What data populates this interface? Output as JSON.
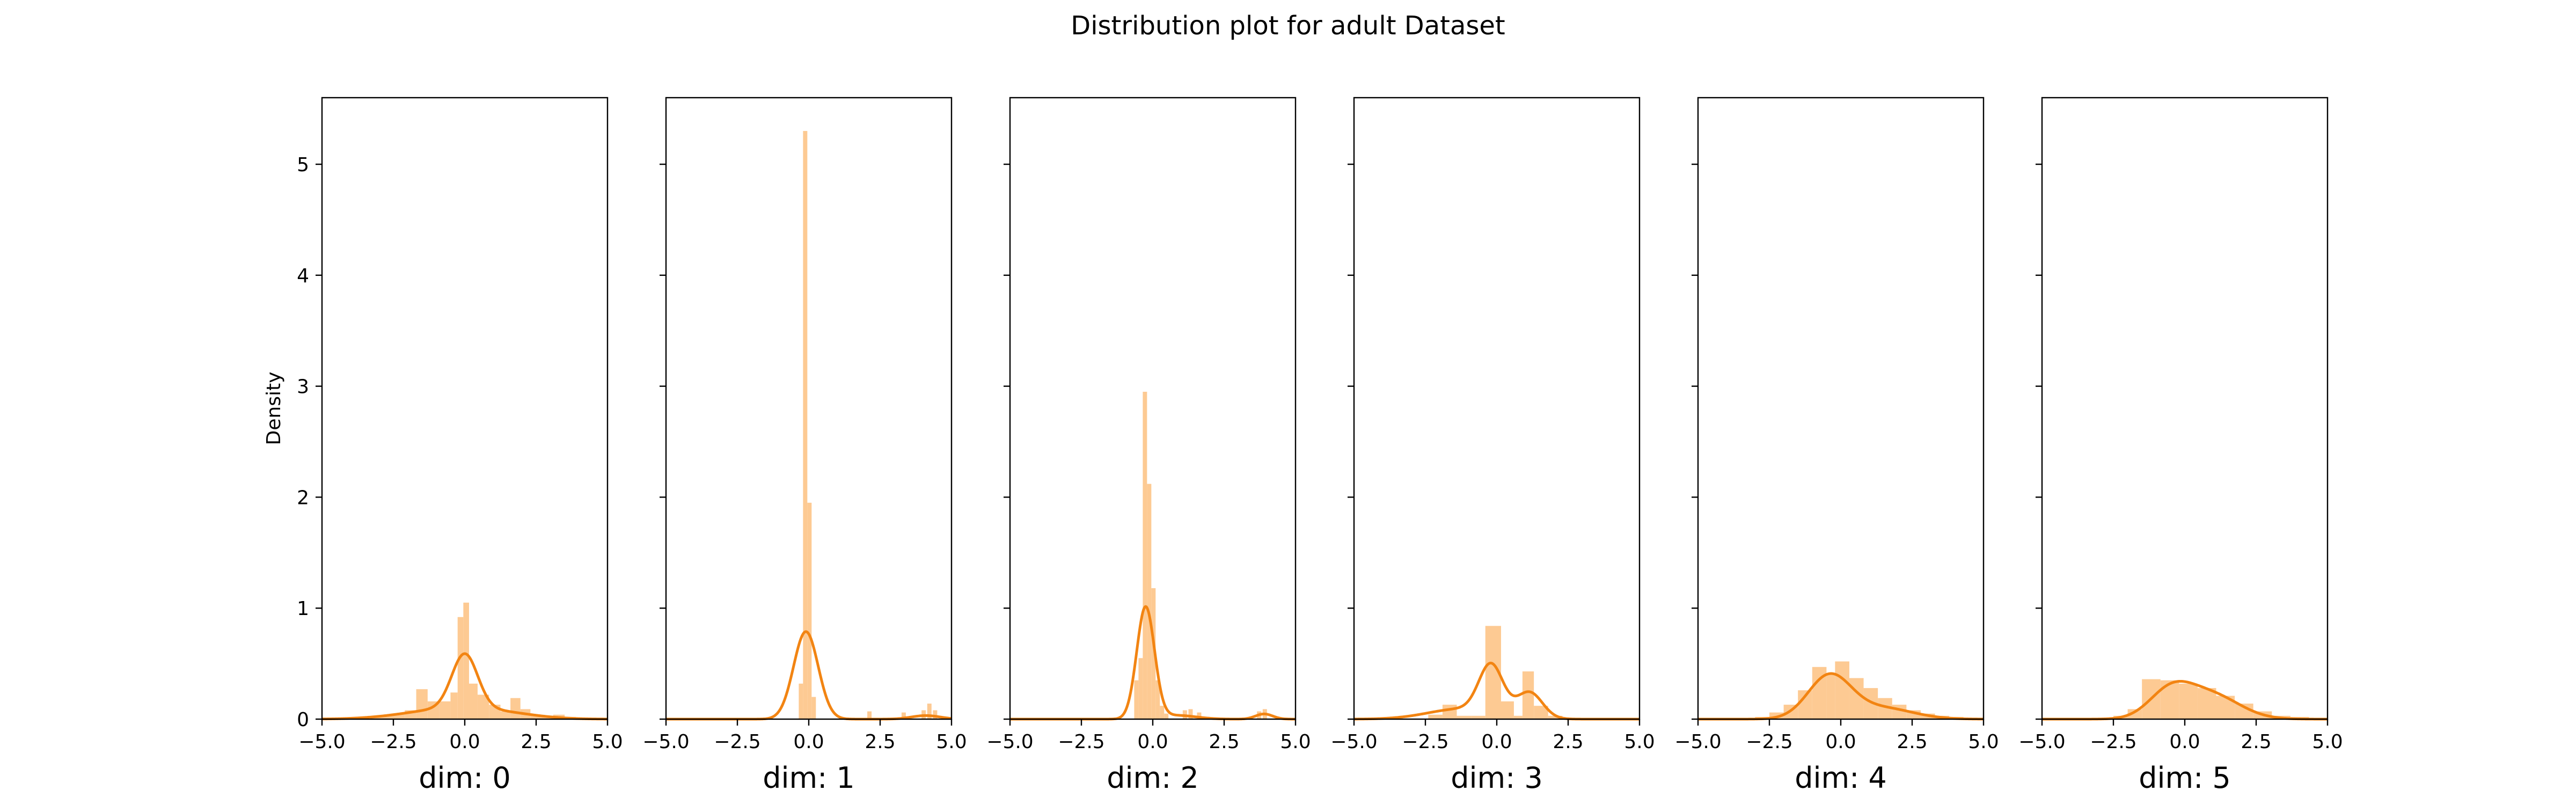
{
  "figure": {
    "title": "Distribution plot for adult Dataset"
  },
  "colors": {
    "bar": "#fdca93",
    "kde": "#f28412",
    "axis": "#000000"
  },
  "chart_data": {
    "type": "histogram with kde",
    "suptitle": "Distribution plot for adult Dataset",
    "ylabel": "Density",
    "xlim": [
      -5.0,
      5.0
    ],
    "ylim": [
      0,
      5.6
    ],
    "x_ticks": [
      -5.0,
      -2.5,
      0.0,
      2.5,
      5.0
    ],
    "x_tick_labels": [
      "−5.0",
      "−2.5",
      "0.0",
      "2.5",
      "5.0"
    ],
    "y_ticks": [
      0,
      1,
      2,
      3,
      4,
      5
    ],
    "y_tick_labels": [
      "0",
      "1",
      "2",
      "3",
      "4",
      "5"
    ],
    "shared_y": true,
    "grid": false,
    "panels": [
      {
        "xlabel": "dim: 0",
        "bars": [
          {
            "x0": -3.3,
            "x1": -2.9,
            "h": 0.02
          },
          {
            "x0": -2.9,
            "x1": -2.5,
            "h": 0.03
          },
          {
            "x0": -2.5,
            "x1": -2.1,
            "h": 0.05
          },
          {
            "x0": -2.1,
            "x1": -1.7,
            "h": 0.08
          },
          {
            "x0": -1.7,
            "x1": -1.3,
            "h": 0.27
          },
          {
            "x0": -1.3,
            "x1": -0.9,
            "h": 0.16
          },
          {
            "x0": -0.9,
            "x1": -0.5,
            "h": 0.16
          },
          {
            "x0": -0.5,
            "x1": -0.25,
            "h": 0.24
          },
          {
            "x0": -0.25,
            "x1": -0.05,
            "h": 0.92
          },
          {
            "x0": -0.05,
            "x1": 0.15,
            "h": 1.05
          },
          {
            "x0": 0.15,
            "x1": 0.45,
            "h": 0.32
          },
          {
            "x0": 0.45,
            "x1": 0.85,
            "h": 0.22
          },
          {
            "x0": 0.85,
            "x1": 1.25,
            "h": 0.13
          },
          {
            "x0": 1.25,
            "x1": 1.6,
            "h": 0.07
          },
          {
            "x0": 1.6,
            "x1": 1.95,
            "h": 0.19
          },
          {
            "x0": 1.95,
            "x1": 2.3,
            "h": 0.09
          },
          {
            "x0": 2.3,
            "x1": 2.7,
            "h": 0.04
          },
          {
            "x0": 2.7,
            "x1": 3.1,
            "h": 0.03
          },
          {
            "x0": 3.1,
            "x1": 3.5,
            "h": 0.04
          },
          {
            "x0": 3.5,
            "x1": 3.9,
            "h": 0.02
          }
        ],
        "kde": [
          {
            "mu": 0.0,
            "s": 0.45,
            "w": 0.55
          },
          {
            "mu": -0.4,
            "s": 1.6,
            "w": 0.38
          },
          {
            "mu": 1.5,
            "s": 1.2,
            "w": 0.07
          }
        ]
      },
      {
        "xlabel": "dim: 1",
        "bars": [
          {
            "x0": -0.35,
            "x1": -0.2,
            "h": 0.32
          },
          {
            "x0": -0.2,
            "x1": -0.05,
            "h": 5.3
          },
          {
            "x0": -0.05,
            "x1": 0.1,
            "h": 1.95
          },
          {
            "x0": 0.1,
            "x1": 0.25,
            "h": 0.2
          },
          {
            "x0": 2.05,
            "x1": 2.2,
            "h": 0.07
          },
          {
            "x0": 3.25,
            "x1": 3.4,
            "h": 0.06
          },
          {
            "x0": 3.95,
            "x1": 4.1,
            "h": 0.08
          },
          {
            "x0": 4.15,
            "x1": 4.3,
            "h": 0.14
          },
          {
            "x0": 4.35,
            "x1": 4.5,
            "h": 0.08
          }
        ],
        "kde": [
          {
            "mu": -0.1,
            "s": 0.43,
            "w": 0.85
          },
          {
            "mu": 4.1,
            "s": 0.5,
            "w": 0.04
          }
        ]
      },
      {
        "xlabel": "dim: 2",
        "bars": [
          {
            "x0": -0.65,
            "x1": -0.5,
            "h": 0.35
          },
          {
            "x0": -0.5,
            "x1": -0.35,
            "h": 0.55
          },
          {
            "x0": -0.35,
            "x1": -0.2,
            "h": 2.95
          },
          {
            "x0": -0.2,
            "x1": -0.05,
            "h": 2.12
          },
          {
            "x0": -0.05,
            "x1": 0.1,
            "h": 1.18
          },
          {
            "x0": 0.1,
            "x1": 0.25,
            "h": 0.35
          },
          {
            "x0": 0.25,
            "x1": 0.4,
            "h": 0.12
          },
          {
            "x0": 0.4,
            "x1": 0.55,
            "h": 0.05
          },
          {
            "x0": 1.05,
            "x1": 1.2,
            "h": 0.08
          },
          {
            "x0": 1.25,
            "x1": 1.4,
            "h": 0.09
          },
          {
            "x0": 1.55,
            "x1": 1.7,
            "h": 0.06
          },
          {
            "x0": 3.65,
            "x1": 3.8,
            "h": 0.07
          },
          {
            "x0": 3.85,
            "x1": 4.0,
            "h": 0.09
          }
        ],
        "kde": [
          {
            "mu": -0.25,
            "s": 0.31,
            "w": 0.78
          },
          {
            "mu": 0.8,
            "s": 0.7,
            "w": 0.06
          },
          {
            "mu": 3.9,
            "s": 0.3,
            "w": 0.035
          }
        ]
      },
      {
        "xlabel": "dim: 3",
        "bars": [
          {
            "x0": -2.4,
            "x1": -1.9,
            "h": 0.04
          },
          {
            "x0": -1.9,
            "x1": -1.4,
            "h": 0.13
          },
          {
            "x0": -1.4,
            "x1": -0.9,
            "h": 0.03
          },
          {
            "x0": -0.9,
            "x1": -0.4,
            "h": 0.03
          },
          {
            "x0": -0.4,
            "x1": 0.15,
            "h": 0.84
          },
          {
            "x0": 0.15,
            "x1": 0.6,
            "h": 0.16
          },
          {
            "x0": 0.6,
            "x1": 0.9,
            "h": 0.03
          },
          {
            "x0": 0.9,
            "x1": 1.3,
            "h": 0.43
          },
          {
            "x0": 1.3,
            "x1": 1.8,
            "h": 0.12
          },
          {
            "x0": 1.8,
            "x1": 2.3,
            "h": 0.03
          }
        ],
        "kde": [
          {
            "mu": -0.2,
            "s": 0.42,
            "w": 0.46
          },
          {
            "mu": 1.15,
            "s": 0.45,
            "w": 0.26
          },
          {
            "mu": -1.2,
            "s": 1.2,
            "w": 0.28
          }
        ]
      },
      {
        "xlabel": "dim: 4",
        "bars": [
          {
            "x0": -3.0,
            "x1": -2.5,
            "h": 0.02
          },
          {
            "x0": -2.5,
            "x1": -2.0,
            "h": 0.06
          },
          {
            "x0": -2.0,
            "x1": -1.5,
            "h": 0.13
          },
          {
            "x0": -1.5,
            "x1": -1.0,
            "h": 0.26
          },
          {
            "x0": -1.0,
            "x1": -0.5,
            "h": 0.47
          },
          {
            "x0": -0.5,
            "x1": -0.2,
            "h": 0.4
          },
          {
            "x0": -0.2,
            "x1": 0.3,
            "h": 0.52
          },
          {
            "x0": 0.3,
            "x1": 0.8,
            "h": 0.37
          },
          {
            "x0": 0.8,
            "x1": 1.3,
            "h": 0.28
          },
          {
            "x0": 1.3,
            "x1": 1.8,
            "h": 0.19
          },
          {
            "x0": 1.8,
            "x1": 2.3,
            "h": 0.13
          },
          {
            "x0": 2.3,
            "x1": 2.8,
            "h": 0.08
          },
          {
            "x0": 2.8,
            "x1": 3.3,
            "h": 0.05
          },
          {
            "x0": 3.3,
            "x1": 3.8,
            "h": 0.03
          },
          {
            "x0": 3.8,
            "x1": 4.3,
            "h": 0.02
          }
        ],
        "kde": [
          {
            "mu": -0.4,
            "s": 0.75,
            "w": 0.72
          },
          {
            "mu": 1.4,
            "s": 1.1,
            "w": 0.28
          }
        ]
      },
      {
        "xlabel": "dim: 5",
        "bars": [
          {
            "x0": -2.5,
            "x1": -2.0,
            "h": 0.03
          },
          {
            "x0": -2.0,
            "x1": -1.5,
            "h": 0.09
          },
          {
            "x0": -1.5,
            "x1": -0.85,
            "h": 0.36
          },
          {
            "x0": -0.85,
            "x1": -0.2,
            "h": 0.35
          },
          {
            "x0": -0.2,
            "x1": 0.45,
            "h": 0.32
          },
          {
            "x0": 0.45,
            "x1": 1.1,
            "h": 0.28
          },
          {
            "x0": 1.1,
            "x1": 1.75,
            "h": 0.21
          },
          {
            "x0": 1.75,
            "x1": 2.4,
            "h": 0.14
          },
          {
            "x0": 2.4,
            "x1": 3.05,
            "h": 0.07
          },
          {
            "x0": 3.05,
            "x1": 3.7,
            "h": 0.03
          },
          {
            "x0": 3.7,
            "x1": 4.35,
            "h": 0.02
          }
        ],
        "kde": [
          {
            "mu": -0.5,
            "s": 0.75,
            "w": 0.45
          },
          {
            "mu": 0.9,
            "s": 1.0,
            "w": 0.55
          }
        ]
      }
    ]
  }
}
